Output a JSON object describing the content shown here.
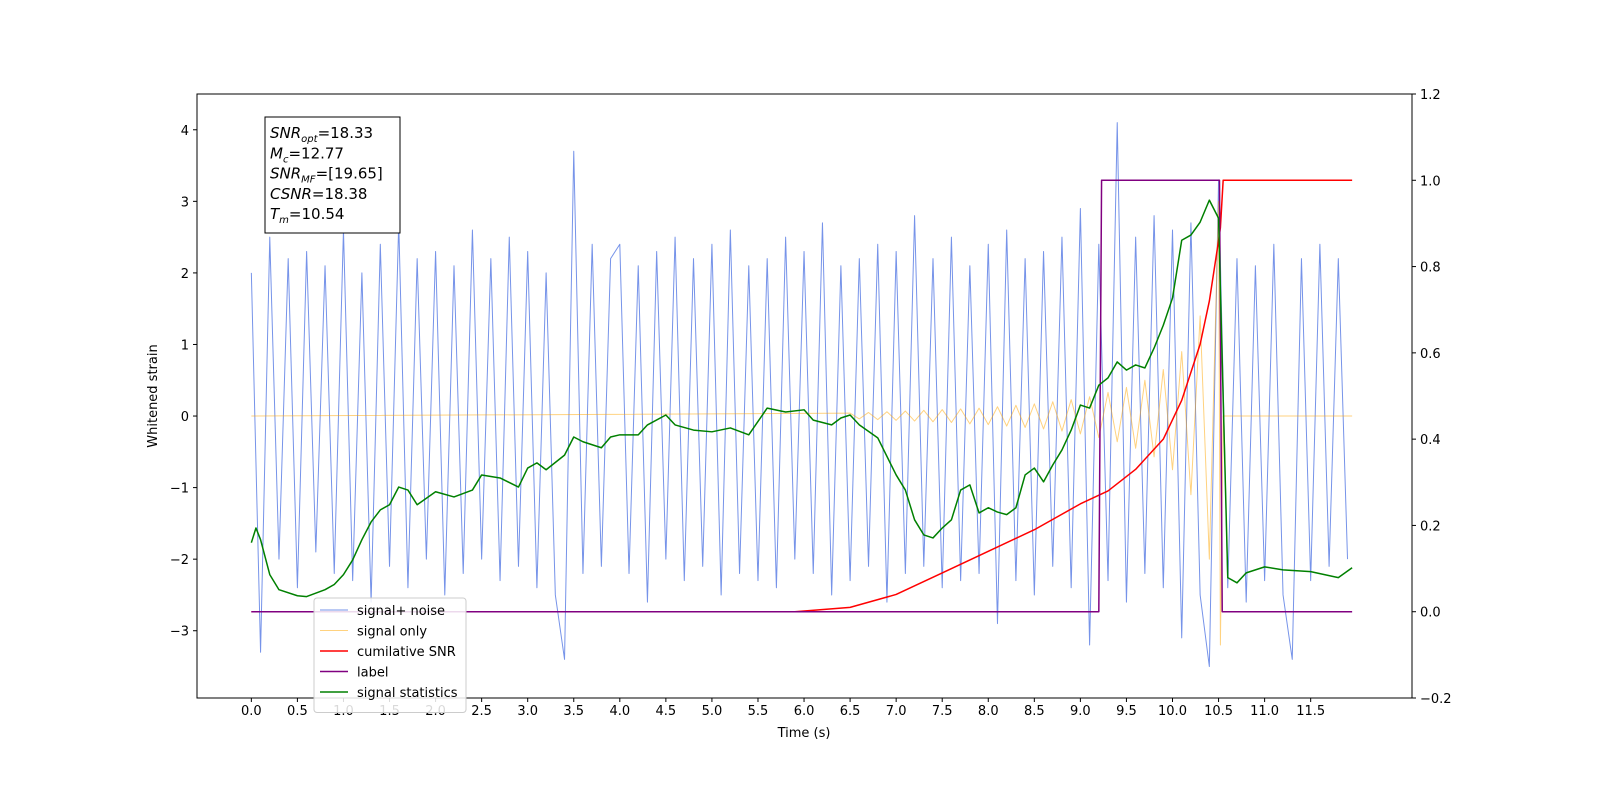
{
  "chart_data": {
    "type": "line",
    "xlabel": "Time (s)",
    "ylabel": "Whitened strain",
    "xlim": [
      -0.59,
      12.6
    ],
    "ylim": [
      -3.94,
      4.5
    ],
    "y2lim": [
      -0.2,
      1.2
    ],
    "xticks": [
      {
        "value": 0,
        "label": "0.0"
      },
      0.5,
      {
        "value": 1,
        "label": "1.0"
      },
      1.5,
      {
        "value": 2,
        "label": "2.0"
      },
      2.5,
      {
        "value": 3,
        "label": "3.0"
      },
      3.5,
      {
        "value": 4,
        "label": "4.0"
      },
      4.5,
      {
        "value": 5,
        "label": "5.0"
      },
      5.5,
      {
        "value": 6,
        "label": "6.0"
      },
      6.5,
      {
        "value": 7,
        "label": "7.0"
      },
      7.5,
      {
        "value": 8,
        "label": "8.0"
      },
      8.5,
      {
        "value": 9,
        "label": "9.0"
      },
      9.5,
      {
        "value": 10,
        "label": "10.0"
      },
      10.5,
      {
        "value": 11,
        "label": "11.0"
      },
      11.5
    ],
    "yticks": [
      {
        "value": -3,
        "label": "−3"
      },
      {
        "value": -2,
        "label": "−2"
      },
      {
        "value": -1,
        "label": "−1"
      },
      0,
      1,
      2,
      3,
      4
    ],
    "y2ticks": [
      {
        "value": -0.2,
        "label": "−0.2"
      },
      {
        "value": 0,
        "label": "0.0"
      },
      0.2,
      0.4,
      0.6,
      0.8,
      {
        "value": 1,
        "label": "1.0"
      },
      1.2
    ],
    "legend": "lower left",
    "annotation": [
      {
        "main": "SNR",
        "sub": "opt",
        "rest": "=18.33"
      },
      {
        "main": "M",
        "sub": "c",
        "rest": "=12.77"
      },
      {
        "main": "SNR",
        "sub": "MF",
        "rest": "=[19.65]"
      },
      {
        "main": "CSNR",
        "rest": "=18.38"
      },
      {
        "main": "T",
        "sub": "m",
        "rest": "=10.54"
      }
    ],
    "series": [
      {
        "name": "signal+ noise",
        "color": "#4169e1",
        "axis": "y",
        "x": [
          0,
          0.1,
          0.2,
          0.3,
          0.4,
          0.5,
          0.6,
          0.7,
          0.8,
          0.9,
          1,
          1.1,
          1.2,
          1.3,
          1.4,
          1.5,
          1.6,
          1.7,
          1.8,
          1.9,
          2,
          2.1,
          2.2,
          2.3,
          2.4,
          2.5,
          2.6,
          2.7,
          2.8,
          2.9,
          3,
          3.1,
          3.2,
          3.3,
          3.4,
          3.5,
          3.6,
          3.7,
          3.8,
          3.9,
          4,
          4.1,
          4.2,
          4.3,
          4.4,
          4.5,
          4.6,
          4.7,
          4.8,
          4.9,
          5,
          5.1,
          5.2,
          5.3,
          5.4,
          5.5,
          5.6,
          5.7,
          5.8,
          5.9,
          6,
          6.1,
          6.2,
          6.3,
          6.4,
          6.5,
          6.6,
          6.7,
          6.8,
          6.9,
          7,
          7.1,
          7.2,
          7.3,
          7.4,
          7.5,
          7.6,
          7.7,
          7.8,
          7.9,
          8,
          8.1,
          8.2,
          8.3,
          8.4,
          8.5,
          8.6,
          8.7,
          8.8,
          8.9,
          9,
          9.1,
          9.2,
          9.3,
          9.4,
          9.5,
          9.6,
          9.7,
          9.8,
          9.9,
          10,
          10.1,
          10.2,
          10.3,
          10.4,
          10.5,
          10.6,
          10.7,
          10.8,
          10.9,
          11,
          11.1,
          11.2,
          11.3,
          11.4,
          11.5,
          11.6,
          11.7,
          11.8,
          11.9
        ],
        "values": [
          2.0,
          -3.3,
          2.5,
          -2.0,
          2.2,
          -2.4,
          2.3,
          -1.9,
          2.1,
          -2.2,
          2.6,
          -2.3,
          2.0,
          -2.6,
          2.4,
          -2.1,
          2.7,
          -2.4,
          2.2,
          -2.0,
          2.3,
          -2.5,
          2.1,
          -2.2,
          2.6,
          -2.0,
          2.2,
          -2.3,
          2.5,
          -2.1,
          2.3,
          -2.4,
          2.0,
          -2.5,
          -3.4,
          3.7,
          -2.2,
          2.4,
          -2.1,
          2.2,
          2.4,
          -2.2,
          2.1,
          -2.6,
          2.3,
          -2.0,
          2.5,
          -2.3,
          2.2,
          -2.1,
          2.4,
          -2.5,
          2.6,
          -2.2,
          2.1,
          -2.3,
          2.2,
          -2.4,
          2.5,
          -2.0,
          2.3,
          -2.2,
          2.7,
          -2.5,
          2.1,
          -2.3,
          2.2,
          -2.1,
          2.4,
          -2.6,
          2.3,
          -2.2,
          2.8,
          -2.1,
          2.2,
          -2.4,
          2.5,
          -2.3,
          2.1,
          -2.2,
          2.4,
          -2.9,
          2.6,
          -2.3,
          2.2,
          -2.5,
          2.3,
          -2.1,
          2.5,
          -2.4,
          2.9,
          -3.2,
          2.4,
          -2.3,
          4.1,
          -2.6,
          2.5,
          -2.2,
          2.8,
          -2.4,
          2.6,
          -3.1,
          2.7,
          -2.5,
          -3.5,
          3.3,
          -2.4,
          2.2,
          -2.6,
          2.1,
          -2.3,
          2.4,
          -2.5,
          -3.4,
          2.2,
          -2.3,
          2.4,
          -2.1,
          2.2,
          -2.0
        ]
      },
      {
        "name": "signal only",
        "color": "#ffa500",
        "axis": "y",
        "x": [
          0,
          6.5,
          6.6,
          6.7,
          6.8,
          6.9,
          7,
          7.1,
          7.2,
          7.3,
          7.4,
          7.5,
          7.6,
          7.7,
          7.8,
          7.9,
          8,
          8.1,
          8.2,
          8.3,
          8.4,
          8.5,
          8.6,
          8.7,
          8.8,
          8.9,
          9,
          9.1,
          9.2,
          9.3,
          9.4,
          9.5,
          9.6,
          9.7,
          9.8,
          9.9,
          10,
          10.1,
          10.2,
          10.3,
          10.4,
          10.5,
          10.52,
          10.55,
          11.95
        ],
        "values": [
          0,
          0.04,
          -0.04,
          0.05,
          -0.05,
          0.06,
          -0.06,
          0.07,
          -0.07,
          0.08,
          -0.08,
          0.09,
          -0.09,
          0.1,
          -0.11,
          0.11,
          -0.12,
          0.13,
          -0.14,
          0.15,
          -0.16,
          0.17,
          -0.18,
          0.2,
          -0.21,
          0.23,
          -0.25,
          0.27,
          -0.3,
          0.33,
          -0.36,
          0.4,
          -0.45,
          0.5,
          -0.57,
          0.65,
          -0.75,
          0.9,
          -1.1,
          1.4,
          -2.0,
          3.0,
          -3.2,
          0,
          0
        ]
      },
      {
        "name": "cumilative SNR",
        "color": "#ff0000",
        "axis": "y2",
        "x": [
          0,
          5.9,
          6.5,
          7,
          7.5,
          8,
          8.5,
          9,
          9.3,
          9.6,
          9.9,
          10.1,
          10.3,
          10.4,
          10.5,
          10.52,
          10.55,
          11.95
        ],
        "values": [
          0,
          0,
          0.01,
          0.04,
          0.09,
          0.14,
          0.19,
          0.25,
          0.28,
          0.33,
          0.4,
          0.49,
          0.62,
          0.72,
          0.86,
          0.89,
          1,
          1
        ]
      },
      {
        "name": "label",
        "color": "#800080",
        "axis": "y2",
        "x": [
          0,
          9.2,
          9.23,
          10.51,
          10.54,
          11.95
        ],
        "values": [
          0,
          0,
          1,
          1,
          0,
          0
        ]
      },
      {
        "name": "signal statistics",
        "color": "#008000",
        "axis": "y2",
        "x": [
          0,
          0.05,
          0.1,
          0.2,
          0.3,
          0.5,
          0.6,
          0.8,
          0.9,
          1,
          1.1,
          1.2,
          1.3,
          1.4,
          1.5,
          1.6,
          1.7,
          1.8,
          2,
          2.2,
          2.4,
          2.5,
          2.7,
          2.9,
          3,
          3.1,
          3.2,
          3.4,
          3.5,
          3.6,
          3.8,
          3.9,
          4,
          4.2,
          4.3,
          4.5,
          4.6,
          4.8,
          5,
          5.2,
          5.4,
          5.6,
          5.8,
          6,
          6.1,
          6.3,
          6.4,
          6.5,
          6.6,
          6.8,
          7,
          7.1,
          7.2,
          7.3,
          7.4,
          7.5,
          7.6,
          7.7,
          7.8,
          7.9,
          8,
          8.1,
          8.2,
          8.3,
          8.4,
          8.5,
          8.6,
          8.7,
          8.8,
          8.9,
          9,
          9.1,
          9.2,
          9.3,
          9.4,
          9.5,
          9.6,
          9.7,
          9.8,
          9.9,
          10,
          10.1,
          10.2,
          10.3,
          10.4,
          10.5,
          10.6,
          10.7,
          10.8,
          11,
          11.2,
          11.5,
          11.8,
          11.95
        ],
        "values": [
          0.16,
          0.194,
          0.167,
          0.086,
          0.051,
          0.037,
          0.035,
          0.051,
          0.063,
          0.086,
          0.12,
          0.167,
          0.208,
          0.236,
          0.248,
          0.289,
          0.282,
          0.248,
          0.278,
          0.266,
          0.282,
          0.317,
          0.31,
          0.289,
          0.333,
          0.345,
          0.329,
          0.363,
          0.405,
          0.394,
          0.38,
          0.405,
          0.41,
          0.41,
          0.433,
          0.456,
          0.433,
          0.421,
          0.417,
          0.426,
          0.41,
          0.472,
          0.463,
          0.468,
          0.444,
          0.433,
          0.449,
          0.456,
          0.433,
          0.403,
          0.317,
          0.282,
          0.213,
          0.178,
          0.171,
          0.194,
          0.213,
          0.282,
          0.294,
          0.229,
          0.241,
          0.231,
          0.225,
          0.241,
          0.317,
          0.333,
          0.301,
          0.34,
          0.375,
          0.421,
          0.479,
          0.472,
          0.525,
          0.542,
          0.579,
          0.56,
          0.572,
          0.565,
          0.611,
          0.664,
          0.727,
          0.861,
          0.873,
          0.903,
          0.954,
          0.912,
          0.079,
          0.067,
          0.09,
          0.104,
          0.097,
          0.093,
          0.079,
          0.102
        ]
      }
    ]
  }
}
